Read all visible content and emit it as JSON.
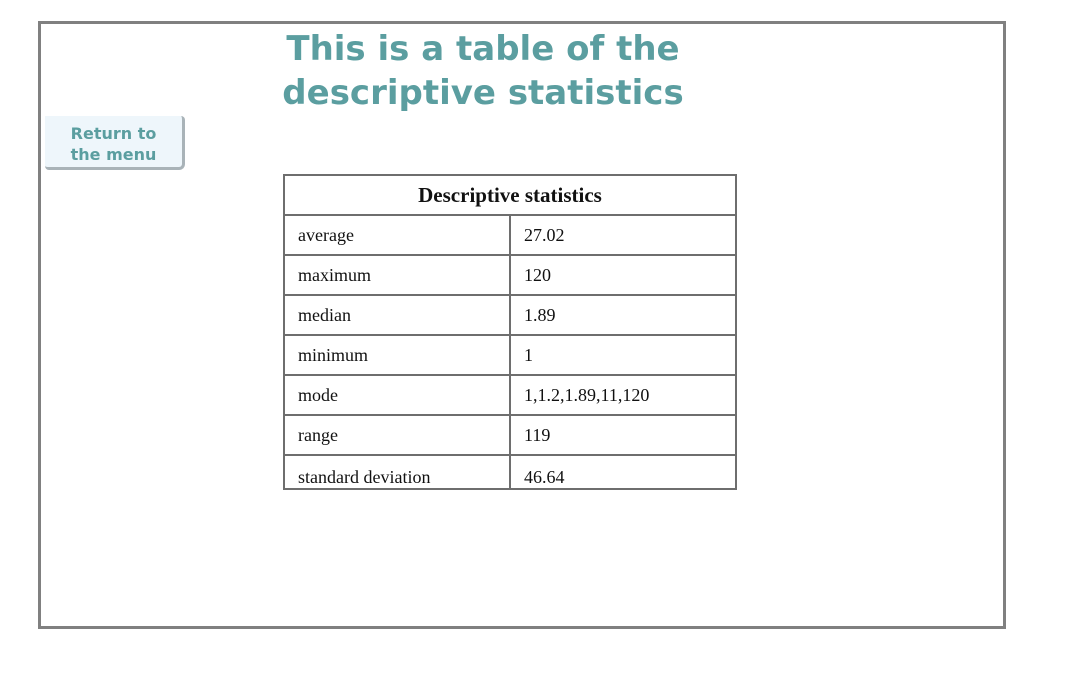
{
  "title": {
    "line1": "This is a table of the",
    "line2": "descriptive statistics"
  },
  "menu_button": {
    "line1": "Return to",
    "line2": "the menu"
  },
  "table": {
    "header": "Descriptive statistics",
    "rows": [
      {
        "name": "average",
        "value": "27.02"
      },
      {
        "name": "maximum",
        "value": "120"
      },
      {
        "name": "median",
        "value": "1.89"
      },
      {
        "name": "minimum",
        "value": "1"
      },
      {
        "name": "mode",
        "value": "1,1.2,1.89,11,120"
      },
      {
        "name": "range",
        "value": "119"
      },
      {
        "name": "standard deviation",
        "value": "46.64"
      }
    ]
  },
  "colors": {
    "accent": "#5b9ea0",
    "frame_border": "#808080",
    "button_bg": "#eef6fb"
  }
}
